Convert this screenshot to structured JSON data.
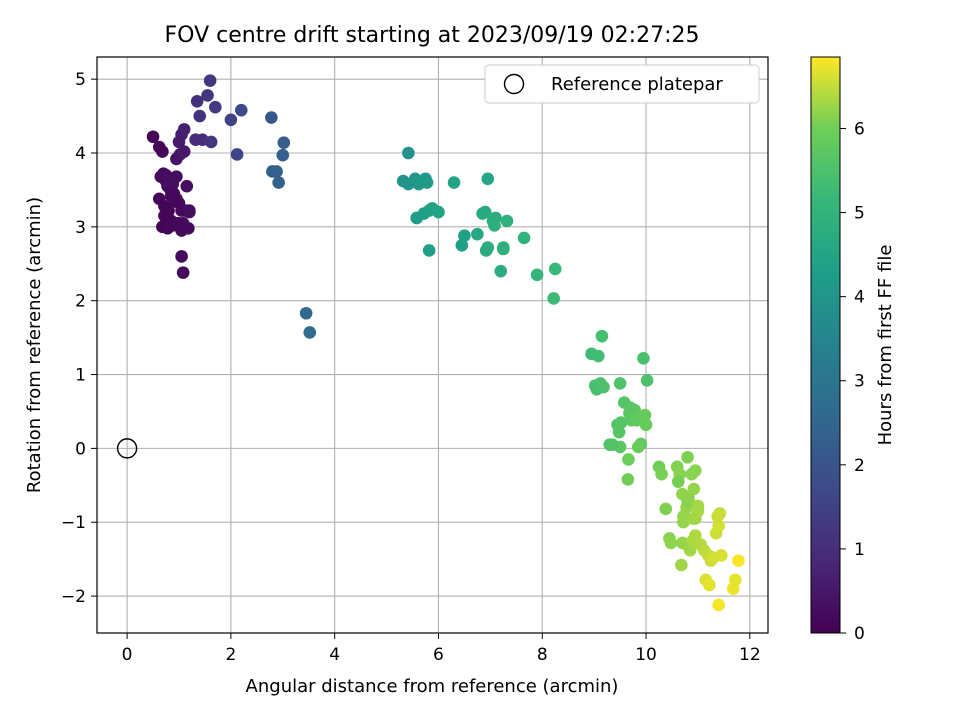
{
  "chart_data": {
    "type": "scatter",
    "title": "FOV centre drift starting at 2023/09/19 02:27:25",
    "xlabel": "Angular distance from reference (arcmin)",
    "ylabel": "Rotation from reference (arcmin)",
    "xlim": [
      -0.58,
      12.35
    ],
    "ylim": [
      -2.5,
      5.3
    ],
    "xticks": [
      0,
      2,
      4,
      6,
      8,
      10,
      12
    ],
    "yticks": [
      -2,
      -1,
      0,
      1,
      2,
      3,
      4,
      5
    ],
    "grid": true,
    "legend_position": "top-right",
    "legend": [
      {
        "label": "Reference platepar",
        "marker": "open-circle"
      }
    ],
    "reference_point": {
      "x": 0,
      "y": 0
    },
    "colorbar": {
      "label": "Hours from first FF file",
      "colormap": "viridis",
      "range": [
        0,
        6.85
      ],
      "ticks": [
        0,
        1,
        2,
        3,
        4,
        5,
        6
      ]
    },
    "series": [
      {
        "x": [
          0.5,
          0.62,
          0.68,
          0.65,
          0.7,
          0.75,
          0.78,
          0.82,
          0.88,
          0.95,
          1.0,
          1.05,
          1.1,
          0.62,
          0.72,
          0.78,
          0.85,
          0.9,
          0.95,
          1.0,
          1.05,
          1.08,
          1.15,
          1.2,
          0.68,
          0.75,
          0.8,
          0.88,
          0.92,
          0.98,
          1.05,
          1.12,
          1.18,
          0.72,
          0.78,
          0.85,
          0.95,
          1.02,
          1.1,
          1.05,
          1.08,
          1.2,
          0.75,
          0.82
        ],
        "y": [
          4.22,
          4.08,
          4.02,
          3.68,
          3.72,
          3.62,
          3.55,
          3.52,
          3.58,
          3.68,
          4.15,
          4.25,
          4.32,
          3.38,
          3.28,
          3.18,
          3.08,
          3.45,
          3.38,
          3.32,
          3.22,
          3.05,
          3.55,
          3.2,
          3.0,
          3.12,
          3.22,
          3.02,
          3.35,
          3.05,
          2.95,
          3.22,
          2.98,
          3.15,
          2.98,
          3.42,
          3.92,
          3.98,
          4.02,
          2.6,
          2.38,
          3.22,
          3.7,
          3.6
        ],
        "t": [
          0.05,
          0.1,
          0.12,
          0.15,
          0.18,
          0.2,
          0.22,
          0.25,
          0.28,
          0.3,
          0.55,
          0.6,
          0.65,
          0.1,
          0.12,
          0.14,
          0.16,
          0.18,
          0.2,
          0.22,
          0.24,
          0.26,
          0.28,
          0.3,
          0.05,
          0.06,
          0.08,
          0.1,
          0.12,
          0.14,
          0.16,
          0.18,
          0.2,
          0.08,
          0.1,
          0.15,
          0.4,
          0.45,
          0.5,
          0.2,
          0.18,
          0.3,
          0.25,
          0.28
        ]
      },
      {
        "x": [
          1.35,
          1.4,
          1.55,
          1.6,
          1.7,
          1.45,
          1.62,
          1.32,
          2.0,
          2.12,
          2.2,
          2.78,
          2.8,
          2.88,
          2.92,
          3.02,
          3.0,
          3.45,
          3.52
        ],
        "y": [
          4.7,
          4.5,
          4.78,
          4.98,
          4.62,
          4.18,
          4.15,
          4.18,
          4.45,
          3.98,
          4.58,
          4.48,
          3.75,
          3.75,
          3.6,
          4.14,
          3.97,
          1.83,
          1.57
        ],
        "t": [
          1.05,
          1.1,
          1.2,
          1.25,
          1.3,
          1.0,
          1.15,
          0.95,
          1.5,
          1.6,
          1.7,
          2.1,
          2.3,
          2.35,
          2.4,
          2.25,
          2.3,
          2.65,
          2.7
        ]
      },
      {
        "x": [
          5.32,
          5.42,
          5.55,
          5.62,
          5.75,
          5.78,
          5.42,
          5.58,
          5.72,
          5.82,
          5.88,
          6.0,
          5.82,
          6.3,
          6.45,
          6.5,
          6.75,
          6.85,
          6.9,
          6.95,
          7.05,
          7.1,
          7.08,
          7.25,
          7.32,
          6.92,
          6.95,
          7.2,
          7.25,
          7.65,
          7.9,
          8.25,
          8.22
        ],
        "y": [
          3.62,
          3.58,
          3.65,
          3.58,
          3.65,
          3.6,
          4.0,
          3.12,
          3.18,
          3.22,
          3.25,
          3.2,
          2.68,
          3.6,
          2.75,
          2.88,
          2.9,
          3.18,
          3.2,
          3.65,
          3.08,
          3.12,
          3.02,
          2.7,
          3.08,
          2.68,
          2.72,
          2.4,
          2.72,
          2.85,
          2.35,
          2.43,
          2.03
        ],
        "t": [
          3.95,
          4.0,
          4.05,
          4.1,
          4.15,
          4.2,
          3.9,
          4.25,
          4.3,
          4.35,
          4.4,
          4.45,
          4.3,
          4.5,
          4.35,
          4.4,
          4.6,
          4.65,
          4.7,
          4.55,
          4.75,
          4.8,
          4.85,
          4.75,
          4.9,
          4.7,
          4.75,
          4.8,
          4.85,
          5.0,
          5.1,
          5.2,
          5.25
        ]
      },
      {
        "x": [
          8.95,
          9.08,
          9.15,
          9.02,
          9.12,
          9.05,
          9.18,
          9.3,
          9.45,
          9.48,
          9.5,
          9.58,
          9.68,
          9.72,
          9.78,
          9.82,
          9.9,
          9.88,
          9.95,
          10.02,
          9.98,
          10.0,
          9.85,
          9.5,
          9.7,
          9.66,
          9.65,
          9.35,
          9.52
        ],
        "y": [
          1.28,
          1.25,
          1.52,
          0.85,
          0.88,
          0.8,
          0.83,
          0.05,
          0.32,
          0.22,
          0.02,
          0.62,
          0.48,
          0.38,
          0.52,
          0.38,
          0.06,
          0.4,
          1.22,
          0.92,
          0.45,
          0.32,
          0.02,
          0.88,
          0.55,
          -0.15,
          -0.42,
          0.05,
          0.35
        ],
        "t": [
          5.3,
          5.35,
          5.4,
          5.45,
          5.5,
          5.42,
          5.48,
          5.55,
          5.6,
          5.65,
          5.7,
          5.62,
          5.68,
          5.72,
          5.75,
          5.78,
          5.8,
          5.82,
          5.45,
          5.5,
          5.85,
          5.88,
          5.9,
          5.55,
          5.7,
          5.95,
          6.0,
          5.6,
          5.65
        ]
      },
      {
        "x": [
          10.25,
          10.3,
          10.38,
          10.45,
          10.48,
          10.6,
          10.65,
          10.7,
          10.72,
          10.78,
          10.8,
          10.82,
          10.88,
          10.92,
          10.95,
          10.7,
          10.78,
          10.85,
          10.9,
          10.95,
          11.0,
          11.05,
          11.12,
          11.2,
          11.25,
          11.3,
          11.35,
          11.4,
          11.42,
          11.45,
          11.4,
          11.68,
          11.72,
          11.78,
          11.15,
          11.22,
          11.38
        ],
        "y": [
          -0.25,
          -0.35,
          -0.82,
          -1.22,
          -1.28,
          -0.25,
          -0.35,
          -0.62,
          -1.0,
          -0.8,
          -0.72,
          -0.68,
          -0.35,
          -0.55,
          -0.95,
          -1.28,
          -1.3,
          -1.38,
          -1.25,
          -1.18,
          -0.85,
          -1.3,
          -1.38,
          -1.45,
          -1.52,
          -1.48,
          -1.15,
          -1.05,
          -0.88,
          -1.45,
          -2.12,
          -1.9,
          -1.78,
          -1.52,
          -1.78,
          -1.85,
          -0.92
        ],
        "t": [
          6.0,
          6.05,
          6.1,
          6.15,
          6.18,
          6.1,
          6.15,
          6.2,
          6.22,
          6.25,
          6.12,
          6.18,
          6.15,
          6.22,
          6.28,
          6.2,
          6.25,
          6.3,
          6.35,
          6.38,
          6.35,
          6.4,
          6.45,
          6.5,
          6.55,
          6.6,
          6.55,
          6.6,
          6.5,
          6.62,
          6.8,
          6.75,
          6.7,
          6.82,
          6.65,
          6.7,
          6.55
        ],
        "extra_x": [
          10.68,
          10.8,
          10.95,
          10.62,
          10.72,
          10.9,
          11.0
        ],
        "extra_y": [
          -1.58,
          -0.12,
          -0.3,
          -0.45,
          -0.92,
          -0.95,
          -0.78
        ],
        "extra_t": [
          6.28,
          6.08,
          6.15,
          6.05,
          6.22,
          6.3,
          6.32
        ]
      }
    ]
  }
}
